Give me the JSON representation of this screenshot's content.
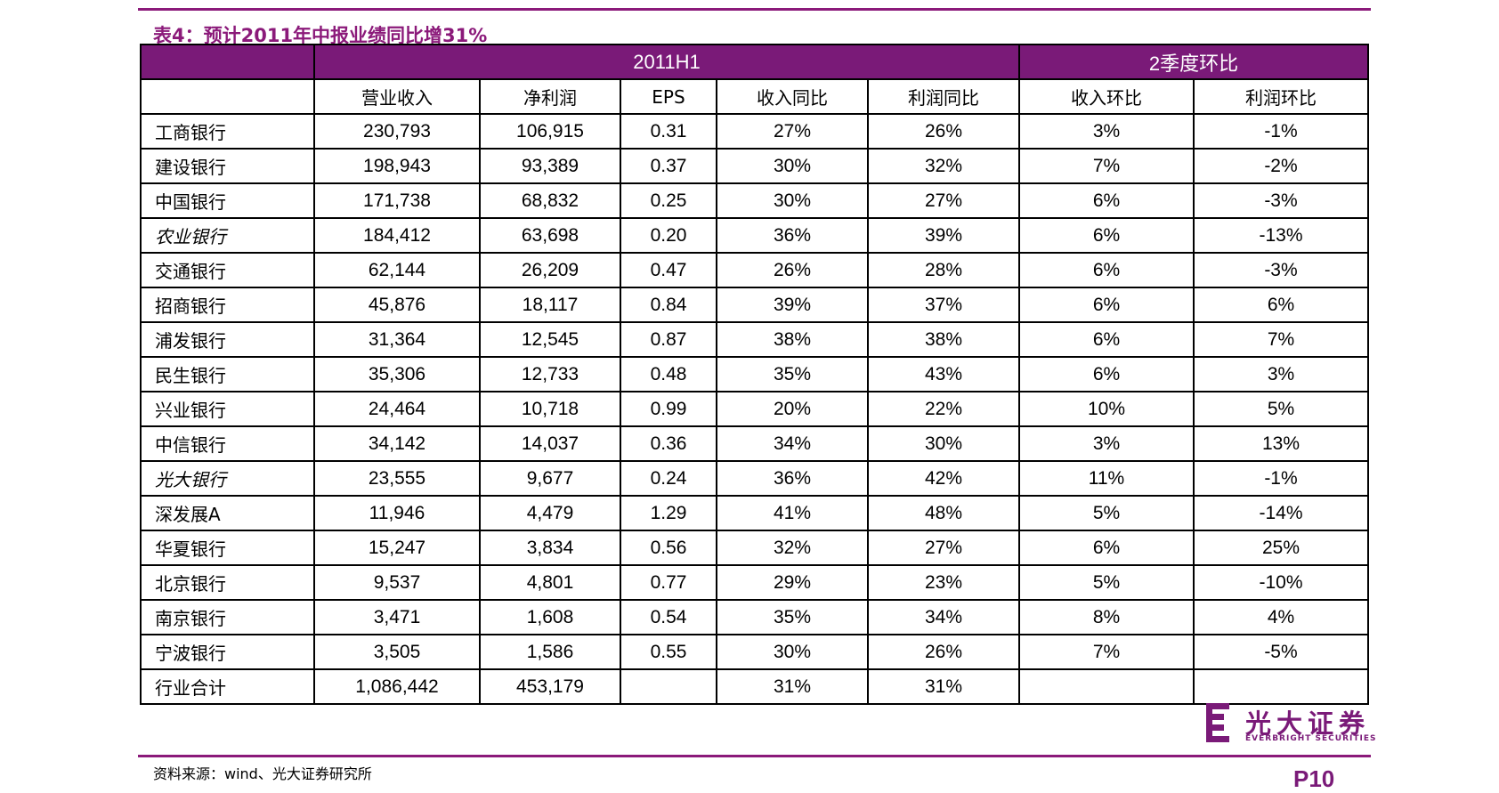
{
  "title": "表4：预计2011年中报业绩同比增31%",
  "header": {
    "group1": "2011H1",
    "group2": "2季度环比",
    "columns": [
      "营业收入",
      "净利润",
      "EPS",
      "收入同比",
      "利润同比",
      "收入环比",
      "利润环比"
    ]
  },
  "rows": [
    {
      "bank": "工商银行",
      "italic": false,
      "cells": [
        "230,793",
        "106,915",
        "0.31",
        "27%",
        "26%",
        "3%",
        "-1%"
      ]
    },
    {
      "bank": "建设银行",
      "italic": false,
      "cells": [
        "198,943",
        "93,389",
        "0.37",
        "30%",
        "32%",
        "7%",
        "-2%"
      ]
    },
    {
      "bank": "中国银行",
      "italic": false,
      "cells": [
        "171,738",
        "68,832",
        "0.25",
        "30%",
        "27%",
        "6%",
        "-3%"
      ]
    },
    {
      "bank": "农业银行",
      "italic": true,
      "cells": [
        "184,412",
        "63,698",
        "0.20",
        "36%",
        "39%",
        "6%",
        "-13%"
      ]
    },
    {
      "bank": "交通银行",
      "italic": false,
      "cells": [
        "62,144",
        "26,209",
        "0.47",
        "26%",
        "28%",
        "6%",
        "-3%"
      ]
    },
    {
      "bank": "招商银行",
      "italic": false,
      "cells": [
        "45,876",
        "18,117",
        "0.84",
        "39%",
        "37%",
        "6%",
        "6%"
      ]
    },
    {
      "bank": "浦发银行",
      "italic": false,
      "cells": [
        "31,364",
        "12,545",
        "0.87",
        "38%",
        "38%",
        "6%",
        "7%"
      ]
    },
    {
      "bank": "民生银行",
      "italic": false,
      "cells": [
        "35,306",
        "12,733",
        "0.48",
        "35%",
        "43%",
        "6%",
        "3%"
      ]
    },
    {
      "bank": "兴业银行",
      "italic": false,
      "cells": [
        "24,464",
        "10,718",
        "0.99",
        "20%",
        "22%",
        "10%",
        "5%"
      ]
    },
    {
      "bank": "中信银行",
      "italic": false,
      "cells": [
        "34,142",
        "14,037",
        "0.36",
        "34%",
        "30%",
        "3%",
        "13%"
      ]
    },
    {
      "bank": "光大银行",
      "italic": true,
      "cells": [
        "23,555",
        "9,677",
        "0.24",
        "36%",
        "42%",
        "11%",
        "-1%"
      ]
    },
    {
      "bank": "深发展A",
      "italic": false,
      "cells": [
        "11,946",
        "4,479",
        "1.29",
        "41%",
        "48%",
        "5%",
        "-14%"
      ]
    },
    {
      "bank": "华夏银行",
      "italic": false,
      "cells": [
        "15,247",
        "3,834",
        "0.56",
        "32%",
        "27%",
        "6%",
        "25%"
      ]
    },
    {
      "bank": "北京银行",
      "italic": false,
      "cells": [
        "9,537",
        "4,801",
        "0.77",
        "29%",
        "23%",
        "5%",
        "-10%"
      ]
    },
    {
      "bank": "南京银行",
      "italic": false,
      "cells": [
        "3,471",
        "1,608",
        "0.54",
        "35%",
        "34%",
        "8%",
        "4%"
      ]
    },
    {
      "bank": "宁波银行",
      "italic": false,
      "cells": [
        "3,505",
        "1,586",
        "0.55",
        "30%",
        "26%",
        "7%",
        "-5%"
      ]
    },
    {
      "bank": "行业合计",
      "italic": false,
      "cells": [
        "1,086,442",
        "453,179",
        "",
        "31%",
        "31%",
        "",
        ""
      ]
    }
  ],
  "logo": {
    "cn": "光大证券",
    "en": "EVERBRIGHT SECURITIES"
  },
  "source": "资料来源：wind、光大证券研究所",
  "page": "P10",
  "colors": {
    "accent": "#7a1a78",
    "rule": "#8b1a7a"
  }
}
